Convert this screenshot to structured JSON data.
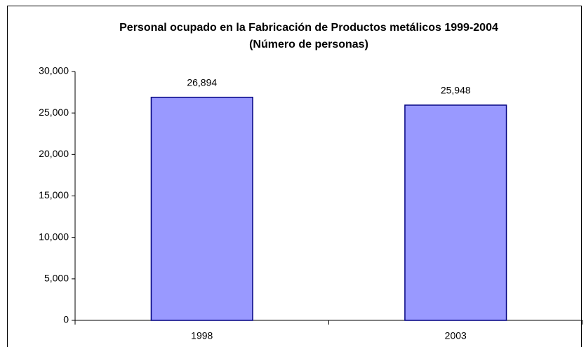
{
  "chart_data": {
    "type": "bar",
    "title": "Personal ocupado en la Fabricación de Productos metálicos 1999-2004",
    "subtitle": "(Número de personas)",
    "categories": [
      "1998",
      "2003"
    ],
    "values": [
      26894,
      25948
    ],
    "value_labels": [
      "26,894",
      "25,948"
    ],
    "color": "#9999ff",
    "edge_color": "#000080",
    "ylim": [
      0,
      30000
    ],
    "yticks": [
      0,
      {
        "value": 5000,
        "label": "5,000"
      },
      {
        "value": 10000,
        "label": "10,000"
      },
      {
        "value": 15000,
        "label": "15,000"
      },
      {
        "value": 20000,
        "label": "20,000"
      },
      {
        "value": 25000,
        "label": "25,000"
      },
      {
        "value": 30000,
        "label": "30,000"
      }
    ],
    "grid": false
  }
}
